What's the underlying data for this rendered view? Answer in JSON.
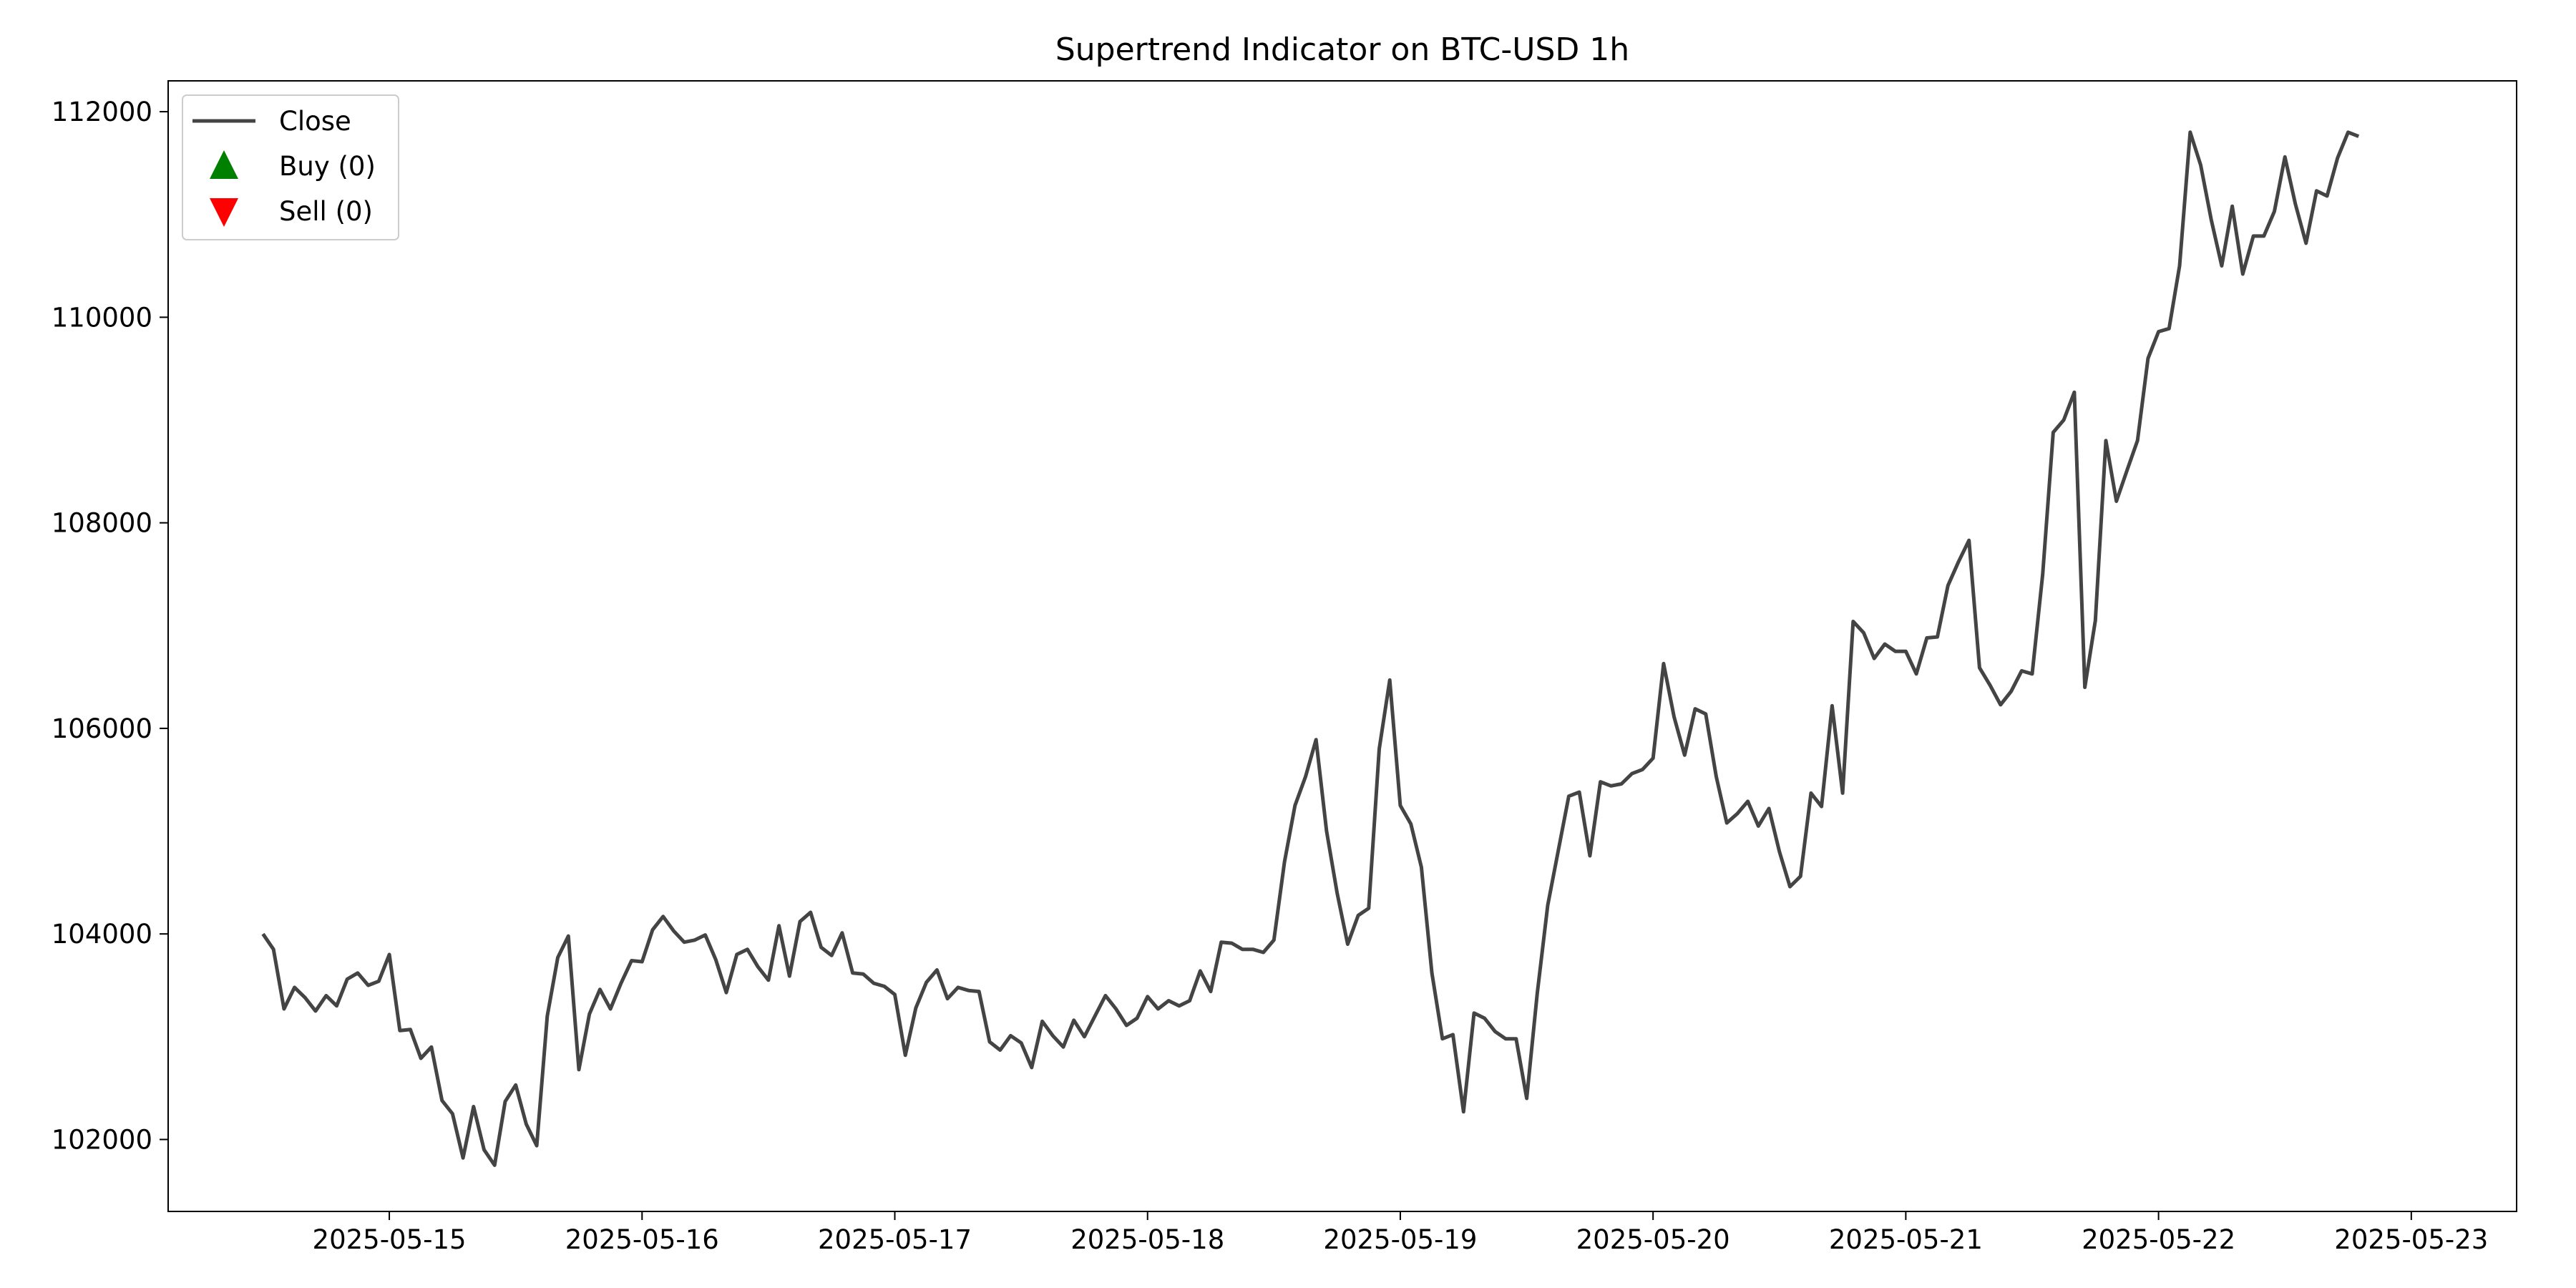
{
  "chart_data": {
    "type": "line",
    "title": "Supertrend Indicator on BTC-USD 1h",
    "xlabel": "",
    "ylabel": "",
    "x_ticks": [
      "2025-05-15",
      "2025-05-16",
      "2025-05-17",
      "2025-05-18",
      "2025-05-19",
      "2025-05-20",
      "2025-05-21",
      "2025-05-22",
      "2025-05-23"
    ],
    "y_ticks": [
      102000,
      104000,
      106000,
      108000,
      110000,
      112000
    ],
    "x_range": [
      "2025-05-14 03:00",
      "2025-05-23 10:00"
    ],
    "ylim": [
      101300,
      112300
    ],
    "grid": false,
    "legend_position": "top-left",
    "legend": [
      {
        "label": "Close",
        "marker": "line",
        "color": "#444444"
      },
      {
        "label": "Buy (0)",
        "marker": "triangle-up",
        "color": "#008000"
      },
      {
        "label": "Sell (0)",
        "marker": "triangle-down",
        "color": "#ff0000"
      }
    ],
    "series": [
      {
        "name": "Close",
        "color": "#444444",
        "start": "2025-05-14 12:00",
        "interval_hours": 1,
        "values": [
          104000,
          103850,
          103270,
          103480,
          103380,
          103250,
          103400,
          103300,
          103560,
          103620,
          103500,
          103540,
          103800,
          103060,
          103070,
          102790,
          102900,
          102380,
          102250,
          101820,
          102320,
          101900,
          101750,
          102370,
          102530,
          102150,
          101940,
          103200,
          103770,
          103980,
          102680,
          103220,
          103460,
          103270,
          103520,
          103740,
          103730,
          104040,
          104170,
          104030,
          103920,
          103940,
          103990,
          103750,
          103430,
          103800,
          103850,
          103680,
          103550,
          104080,
          103590,
          104120,
          104210,
          103870,
          103790,
          104010,
          103620,
          103610,
          103520,
          103490,
          103410,
          102820,
          103280,
          103530,
          103650,
          103370,
          103480,
          103450,
          103440,
          102950,
          102870,
          103010,
          102940,
          102700,
          103150,
          103010,
          102900,
          103160,
          103000,
          103200,
          103400,
          103270,
          103110,
          103180,
          103390,
          103270,
          103350,
          103300,
          103350,
          103640,
          103440,
          103920,
          103910,
          103850,
          103850,
          103820,
          103940,
          104700,
          105250,
          105530,
          105890,
          105000,
          104400,
          103900,
          104180,
          104250,
          105800,
          106470,
          105250,
          105070,
          104650,
          103620,
          102980,
          103020,
          102270,
          103230,
          103180,
          103050,
          102980,
          102980,
          102400,
          103420,
          104280,
          104810,
          105340,
          105380,
          104760,
          105480,
          105440,
          105460,
          105560,
          105600,
          105710,
          106630,
          106110,
          105740,
          106190,
          106140,
          105530,
          105080,
          105170,
          105290,
          105050,
          105220,
          104800,
          104460,
          104560,
          105370,
          105240,
          106220,
          105370,
          107040,
          106930,
          106680,
          106820,
          106750,
          106750,
          106530,
          106880,
          106890,
          107390,
          107620,
          107830,
          106590,
          106420,
          106230,
          106360,
          106560,
          106530,
          107500,
          108880,
          109000,
          109270,
          106400,
          107050,
          108800,
          108210,
          108510,
          108800,
          109600,
          109860,
          109890,
          110500,
          111800,
          111480,
          110950,
          110500,
          111080,
          110420,
          110790,
          110790,
          111030,
          111560,
          111100,
          110720,
          111230,
          111180,
          111550,
          111800,
          111760
        ]
      }
    ]
  }
}
